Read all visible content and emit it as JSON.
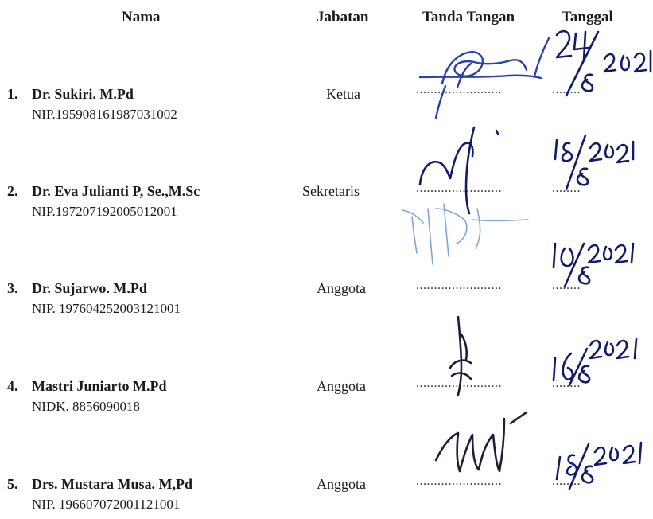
{
  "headers": {
    "name": "Nama",
    "position": "Jabatan",
    "signature": "Tanda Tangan",
    "date": "Tanggal"
  },
  "members": [
    {
      "number": "1.",
      "name": "Dr. Sukiri. M.Pd",
      "id": "NIP.195908161987031002",
      "position": "Ketua",
      "dots": "........................",
      "date_dots": "........",
      "signature_color": "#2a3fb0"
    },
    {
      "number": "2.",
      "name": "Dr. Eva Julianti P, Se.,M.Sc",
      "id": "NIP.197207192005012001",
      "position": "Sekretaris",
      "dots": "........................",
      "date_dots": "........",
      "signature_color": "#111a6b"
    },
    {
      "number": "3.",
      "name": "Dr. Sujarwo. M.Pd",
      "id": "NIP. 197604252003121001",
      "position": "Anggota",
      "dots": "........................",
      "date_dots": "........",
      "signature_color": "#7fa6d6"
    },
    {
      "number": "4.",
      "name": "Mastri Juniarto M.Pd",
      "id": "NIDK. 8856090018",
      "position": "Anggota",
      "dots": "........................",
      "date_dots": "........",
      "signature_color": "#1b1f3a"
    },
    {
      "number": "5.",
      "name": "Drs. Mustara Musa. M,Pd",
      "id": "NIP. 196607072001121001",
      "position": "Anggota",
      "dots": "........................",
      "date_dots": "........",
      "signature_color": "#1b1f3a"
    }
  ],
  "handwritten_dates": [
    {
      "day": "24",
      "year": "2021",
      "month": "8"
    },
    {
      "day": "18",
      "year": "2021",
      "month": "8"
    },
    {
      "day": "10",
      "year": "2021",
      "month": "8"
    },
    {
      "day": "16",
      "year": "2021",
      "month": "8"
    },
    {
      "day": "18",
      "year": "2021",
      "month": "8"
    }
  ]
}
